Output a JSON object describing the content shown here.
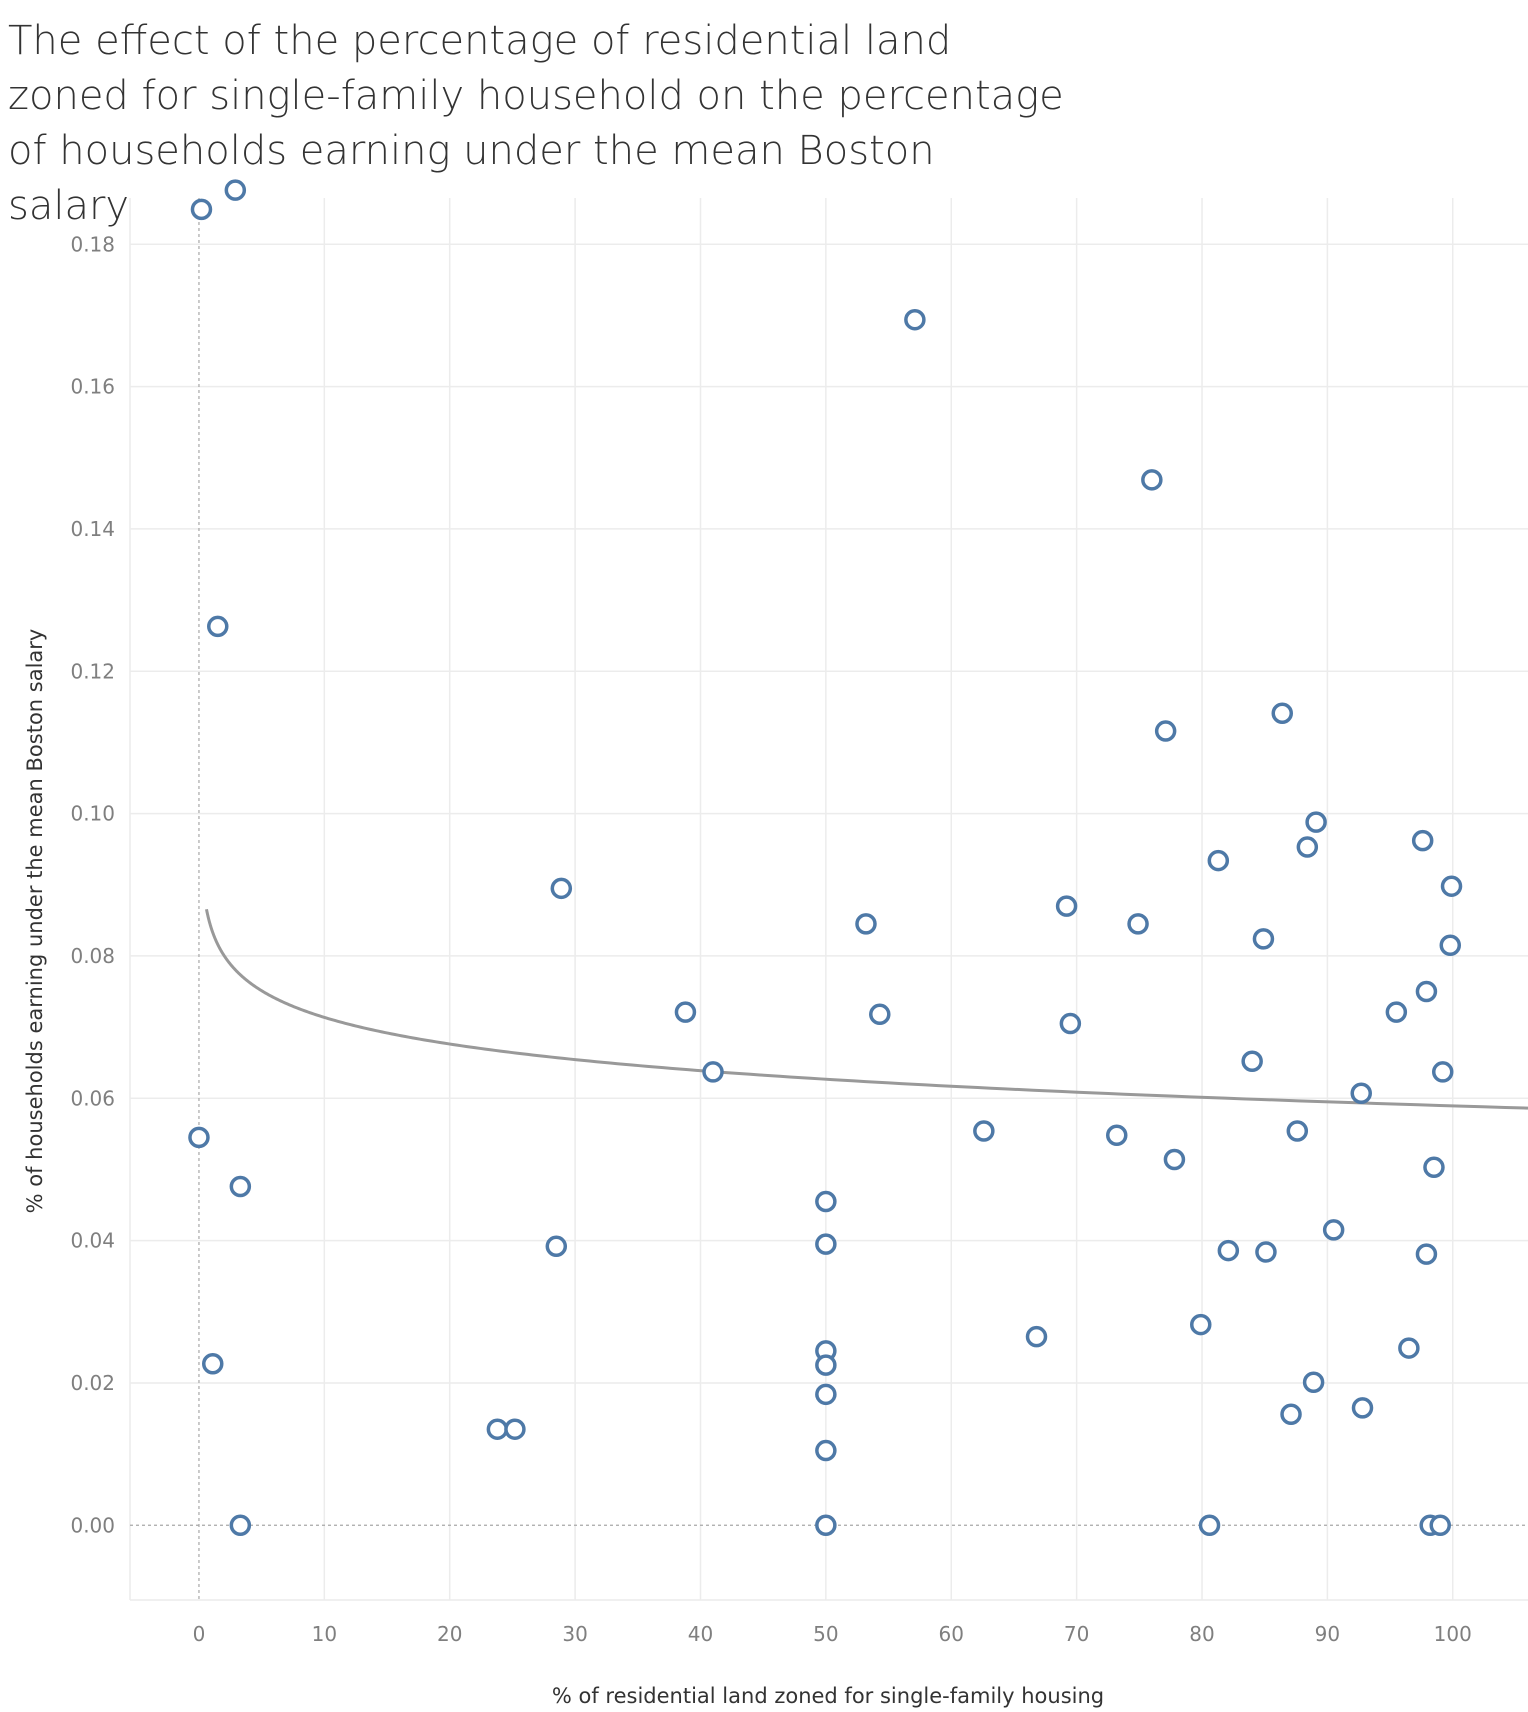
{
  "colors": {
    "point": "#4e79a7",
    "trend": "#999999",
    "grid": "#ececec"
  },
  "chart_data": {
    "type": "scatter",
    "title": "The effect of the percentage of residential land zoned for single-family household on the percentage of households earning under the mean Boston salary",
    "xlabel": "% of residential land zoned for single-family housing",
    "ylabel": "% of households earning under the mean Boston salary",
    "xlim": [
      -5.5,
      106
    ],
    "ylim": [
      -0.0105,
      0.1865
    ],
    "x_ticks": [
      0,
      10,
      20,
      30,
      40,
      50,
      60,
      70,
      80,
      90,
      100
    ],
    "x_tick_labels": [
      "0",
      "10",
      "20",
      "30",
      "40",
      "50",
      "60",
      "70",
      "80",
      "90",
      "100"
    ],
    "y_ticks": [
      0,
      0.02,
      0.04,
      0.06,
      0.08,
      0.1,
      0.12,
      0.14,
      0.16,
      0.18
    ],
    "y_tick_labels": [
      "0.00",
      "0.02",
      "0.04",
      "0.06",
      "0.08",
      "0.10",
      "0.12",
      "0.14",
      "0.16",
      "0.18"
    ],
    "grid": true,
    "legend": "none",
    "trend_line": {
      "model": "logarithmic",
      "x_range": [
        0.6,
        106
      ],
      "intercept": 0.0838,
      "slope": -0.0054
    },
    "points": [
      {
        "x": 0.2,
        "y": 0.1849
      },
      {
        "x": 2.9,
        "y": 0.1876
      },
      {
        "x": 57.1,
        "y": 0.1694
      },
      {
        "x": 76.0,
        "y": 0.1469
      },
      {
        "x": 1.5,
        "y": 0.1263
      },
      {
        "x": 86.4,
        "y": 0.1141
      },
      {
        "x": 77.1,
        "y": 0.1116
      },
      {
        "x": 89.1,
        "y": 0.0988
      },
      {
        "x": 97.6,
        "y": 0.0962
      },
      {
        "x": 88.4,
        "y": 0.0953
      },
      {
        "x": 81.3,
        "y": 0.0934
      },
      {
        "x": 28.9,
        "y": 0.0895
      },
      {
        "x": 99.9,
        "y": 0.0898
      },
      {
        "x": 69.2,
        "y": 0.087
      },
      {
        "x": 53.2,
        "y": 0.0845
      },
      {
        "x": 74.9,
        "y": 0.0845
      },
      {
        "x": 84.9,
        "y": 0.0824
      },
      {
        "x": 99.8,
        "y": 0.0815
      },
      {
        "x": 97.9,
        "y": 0.075
      },
      {
        "x": 38.8,
        "y": 0.0721
      },
      {
        "x": 54.3,
        "y": 0.0718
      },
      {
        "x": 95.5,
        "y": 0.0721
      },
      {
        "x": 69.5,
        "y": 0.0705
      },
      {
        "x": 84.0,
        "y": 0.0652
      },
      {
        "x": 41.0,
        "y": 0.0637
      },
      {
        "x": 99.2,
        "y": 0.0637
      },
      {
        "x": 92.7,
        "y": 0.0607
      },
      {
        "x": 0.0,
        "y": 0.0545
      },
      {
        "x": 62.6,
        "y": 0.0554
      },
      {
        "x": 73.2,
        "y": 0.0548
      },
      {
        "x": 87.6,
        "y": 0.0554
      },
      {
        "x": 77.8,
        "y": 0.0514
      },
      {
        "x": 98.5,
        "y": 0.0503
      },
      {
        "x": 3.3,
        "y": 0.0476
      },
      {
        "x": 50.0,
        "y": 0.0455
      },
      {
        "x": 90.5,
        "y": 0.0415
      },
      {
        "x": 28.5,
        "y": 0.0392
      },
      {
        "x": 50.0,
        "y": 0.0395
      },
      {
        "x": 82.1,
        "y": 0.0386
      },
      {
        "x": 85.1,
        "y": 0.0384
      },
      {
        "x": 97.9,
        "y": 0.0381
      },
      {
        "x": 79.9,
        "y": 0.0282
      },
      {
        "x": 66.8,
        "y": 0.0265
      },
      {
        "x": 96.5,
        "y": 0.0249
      },
      {
        "x": 50.0,
        "y": 0.0245
      },
      {
        "x": 1.1,
        "y": 0.0227
      },
      {
        "x": 50.0,
        "y": 0.0225
      },
      {
        "x": 88.9,
        "y": 0.0201
      },
      {
        "x": 50.0,
        "y": 0.0184
      },
      {
        "x": 92.8,
        "y": 0.0165
      },
      {
        "x": 87.1,
        "y": 0.0156
      },
      {
        "x": 23.8,
        "y": 0.0135
      },
      {
        "x": 25.2,
        "y": 0.0135
      },
      {
        "x": 50.0,
        "y": 0.0105
      },
      {
        "x": 3.3,
        "y": 0.0
      },
      {
        "x": 50.0,
        "y": 0.0
      },
      {
        "x": 80.6,
        "y": 0.0
      },
      {
        "x": 98.2,
        "y": 0.0
      },
      {
        "x": 99.0,
        "y": 0.0
      }
    ]
  }
}
